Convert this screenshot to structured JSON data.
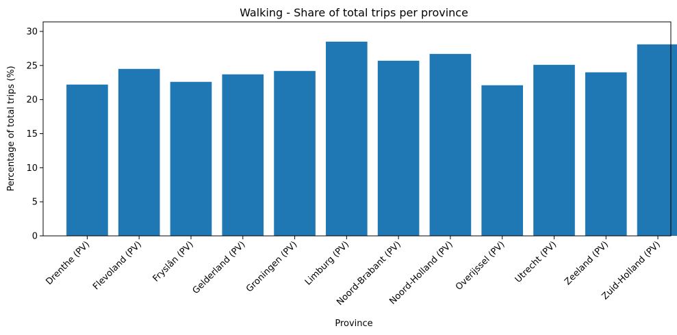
{
  "chart_data": {
    "type": "bar",
    "title": "Walking - Share of total trips per province",
    "xlabel": "Province",
    "ylabel": "Percentage of total trips (%)",
    "categories": [
      "Drenthe (PV)",
      "Flevoland (PV)",
      "Fryslân (PV)",
      "Gelderland (PV)",
      "Groningen (PV)",
      "Limburg (PV)",
      "Noord-Brabant (PV)",
      "Noord-Holland (PV)",
      "Overijssel (PV)",
      "Utrecht (PV)",
      "Zeeland (PV)",
      "Zuid-Holland (PV)"
    ],
    "values": [
      22.2,
      24.5,
      22.6,
      23.7,
      24.2,
      28.5,
      25.7,
      26.7,
      22.1,
      25.1,
      24.0,
      28.1
    ],
    "ylim": [
      0,
      31.4
    ],
    "yticks": [
      0,
      5,
      10,
      15,
      20,
      25,
      30
    ],
    "grid": false,
    "bar_color": "#1f77b4"
  }
}
